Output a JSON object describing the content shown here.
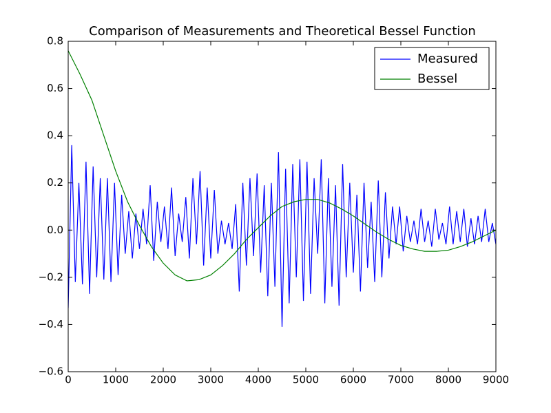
{
  "chart_data": {
    "type": "line",
    "title": "Comparison of Measurements and Theoretical Bessel Function",
    "xlim": [
      0,
      9000
    ],
    "ylim": [
      -0.6,
      0.8
    ],
    "xticks": [
      0,
      1000,
      2000,
      3000,
      4000,
      5000,
      6000,
      7000,
      8000,
      9000
    ],
    "yticks": [
      {
        "value": -0.6,
        "label": "−0.6"
      },
      {
        "value": -0.4,
        "label": "−0.4"
      },
      {
        "value": -0.2,
        "label": "−0.2"
      },
      {
        "value": 0,
        "label": "0.0"
      },
      0.2,
      0.4,
      0.6,
      0.8
    ],
    "grid": false,
    "legend": "upper right",
    "series": [
      {
        "name": "Measured",
        "color": "#0000ff",
        "x": [
          0,
          75,
          150,
          225,
          300,
          375,
          450,
          525,
          600,
          675,
          750,
          825,
          900,
          975,
          1050,
          1125,
          1200,
          1275,
          1350,
          1425,
          1500,
          1575,
          1650,
          1725,
          1800,
          1875,
          1950,
          2025,
          2100,
          2175,
          2250,
          2325,
          2400,
          2475,
          2550,
          2625,
          2700,
          2775,
          2850,
          2925,
          3000,
          3075,
          3150,
          3225,
          3300,
          3375,
          3450,
          3525,
          3600,
          3675,
          3750,
          3825,
          3900,
          3975,
          4050,
          4125,
          4200,
          4275,
          4350,
          4425,
          4500,
          4575,
          4650,
          4725,
          4800,
          4875,
          4950,
          5025,
          5100,
          5175,
          5250,
          5325,
          5400,
          5475,
          5550,
          5625,
          5700,
          5775,
          5850,
          5925,
          6000,
          6075,
          6150,
          6225,
          6300,
          6375,
          6450,
          6525,
          6600,
          6675,
          6750,
          6825,
          6900,
          6975,
          7050,
          7125,
          7200,
          7275,
          7350,
          7425,
          7500,
          7575,
          7650,
          7725,
          7800,
          7875,
          7950,
          8025,
          8100,
          8175,
          8250,
          8325,
          8400,
          8475,
          8550,
          8625,
          8700,
          8775,
          8850,
          8925,
          9000
        ],
        "values": [
          -0.33,
          0.36,
          -0.22,
          0.2,
          -0.23,
          0.29,
          -0.27,
          0.27,
          -0.2,
          0.22,
          -0.21,
          0.22,
          -0.22,
          0.2,
          -0.19,
          0.15,
          -0.1,
          0.08,
          -0.12,
          0.07,
          -0.08,
          0.09,
          -0.06,
          0.19,
          -0.13,
          0.12,
          -0.05,
          0.1,
          -0.08,
          0.18,
          -0.11,
          0.07,
          -0.05,
          0.14,
          -0.12,
          0.22,
          -0.06,
          0.25,
          -0.15,
          0.18,
          -0.12,
          0.17,
          -0.1,
          0.04,
          -0.06,
          0.03,
          -0.08,
          0.11,
          -0.26,
          0.2,
          -0.15,
          0.22,
          -0.11,
          0.24,
          -0.18,
          0.19,
          -0.28,
          0.2,
          -0.24,
          0.33,
          -0.41,
          0.26,
          -0.31,
          0.28,
          -0.2,
          0.3,
          -0.3,
          0.29,
          -0.27,
          0.22,
          -0.1,
          0.3,
          -0.31,
          0.22,
          -0.24,
          0.19,
          -0.32,
          0.28,
          -0.2,
          0.2,
          -0.18,
          0.15,
          -0.26,
          0.2,
          -0.16,
          0.12,
          -0.22,
          0.21,
          -0.2,
          0.16,
          -0.12,
          0.1,
          -0.06,
          0.1,
          -0.09,
          0.06,
          -0.05,
          0.04,
          -0.06,
          0.09,
          -0.05,
          0.04,
          -0.07,
          0.09,
          -0.04,
          0.03,
          -0.06,
          0.1,
          -0.06,
          0.08,
          -0.05,
          0.09,
          -0.07,
          0.05,
          -0.06,
          0.06,
          -0.05,
          0.09,
          -0.05,
          0.03,
          -0.06
        ]
      },
      {
        "name": "Bessel",
        "color": "#008000",
        "x": [
          0,
          250,
          500,
          750,
          1000,
          1250,
          1500,
          1750,
          2000,
          2250,
          2500,
          2750,
          3000,
          3250,
          3500,
          3750,
          4000,
          4250,
          4500,
          4750,
          5000,
          5250,
          5500,
          5750,
          6000,
          6250,
          6500,
          6750,
          7000,
          7250,
          7500,
          7750,
          8000,
          8250,
          8500,
          8750,
          9000
        ],
        "values": [
          0.76,
          0.66,
          0.55,
          0.4,
          0.25,
          0.12,
          0.02,
          -0.07,
          -0.14,
          -0.19,
          -0.215,
          -0.21,
          -0.19,
          -0.15,
          -0.1,
          -0.04,
          0.01,
          0.06,
          0.1,
          0.12,
          0.13,
          0.13,
          0.115,
          0.09,
          0.06,
          0.025,
          -0.01,
          -0.04,
          -0.065,
          -0.08,
          -0.09,
          -0.09,
          -0.085,
          -0.07,
          -0.05,
          -0.025,
          0
        ]
      }
    ]
  }
}
